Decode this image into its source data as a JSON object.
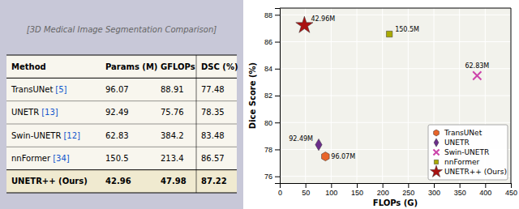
{
  "chart_data": {
    "type": "scatter",
    "xlabel": "FLOPs (G)",
    "ylabel": "Dice Score (%)",
    "xlim": [
      0,
      450
    ],
    "ylim": [
      75.5,
      88.5
    ],
    "xticks": [
      0,
      50,
      100,
      150,
      200,
      250,
      300,
      350,
      400,
      450
    ],
    "yticks": [
      76,
      78,
      80,
      82,
      84,
      86,
      88
    ],
    "grid": true,
    "legend": "lower right",
    "series": [
      {
        "name": "TransUNet",
        "color": "#E8652A",
        "marker": "hexagon",
        "x": [
          88.91
        ],
        "values": [
          77.48
        ],
        "point_labels": [
          "96.07M"
        ]
      },
      {
        "name": "UNETR",
        "color": "#6B2D8B",
        "marker": "diamond",
        "x": [
          75.76
        ],
        "values": [
          78.35
        ],
        "point_labels": [
          "92.49M"
        ]
      },
      {
        "name": "Swin-UNETR",
        "color": "#CC44AA",
        "marker": "x",
        "x": [
          384.2
        ],
        "values": [
          83.48
        ],
        "point_labels": [
          "62.83M"
        ]
      },
      {
        "name": "nnFormer",
        "color": "#AAAA00",
        "marker": "square",
        "x": [
          213.4
        ],
        "values": [
          86.57
        ],
        "point_labels": [
          "150.5M"
        ]
      },
      {
        "name": "UNETR++ (Ours)",
        "color": "#AA1111",
        "marker": "star",
        "x": [
          47.98
        ],
        "values": [
          87.22
        ],
        "point_labels": [
          "42.96M"
        ]
      }
    ],
    "table": {
      "headers": [
        "Method",
        "Params (M)",
        "GFLOPs",
        "DSC (%)"
      ],
      "rows": [
        {
          "method": "TransUNet",
          "ref": "[5]",
          "cells": [
            96.07,
            88.91,
            77.48
          ]
        },
        {
          "method": "UNETR",
          "ref": "[13]",
          "cells": [
            92.49,
            75.76,
            78.35
          ]
        },
        {
          "method": "Swin-UNETR",
          "ref": "[12]",
          "cells": [
            62.83,
            384.2,
            83.48
          ]
        },
        {
          "method": "nnFormer",
          "ref": "[34]",
          "cells": [
            150.5,
            213.4,
            86.57
          ]
        },
        {
          "method": "UNETR++ (Ours)",
          "cells": [
            42.96,
            47.98,
            87.22
          ]
        }
      ]
    },
    "annotations": [
      "[3D Medical Image Segmentation Comparison]"
    ]
  }
}
